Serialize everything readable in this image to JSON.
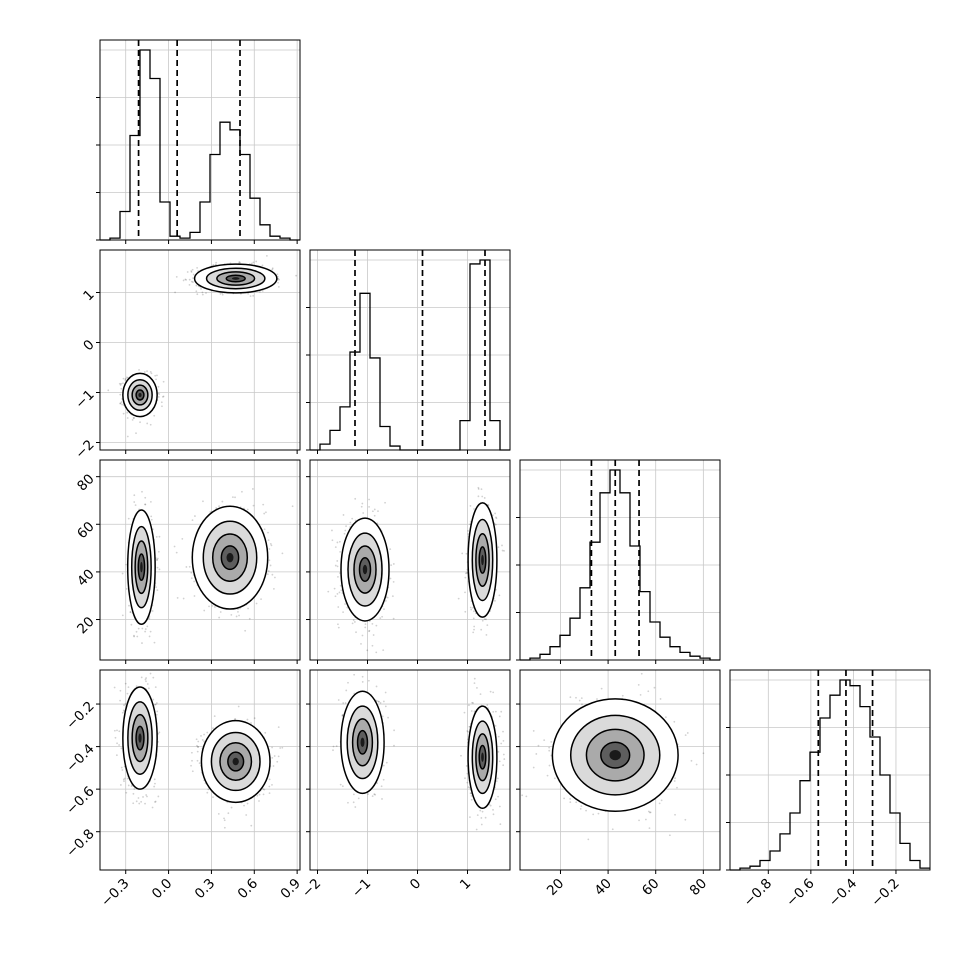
{
  "chart_data": {
    "type": "corner",
    "grid": true,
    "parameters": [
      {
        "ticks": [
          -0.3,
          0.0,
          0.3,
          0.6,
          0.9
        ],
        "tick_labels": [
          "−0.3",
          "0.0",
          "0.3",
          "0.6",
          "0.9"
        ],
        "range": [
          -0.48,
          0.92
        ]
      },
      {
        "ticks": [
          -2,
          -1,
          0,
          1
        ],
        "tick_labels": [
          "−2",
          "−1",
          "0",
          "1"
        ],
        "range": [
          -2.15,
          1.85
        ]
      },
      {
        "ticks": [
          20,
          40,
          60,
          80
        ],
        "tick_labels": [
          "20",
          "40",
          "60",
          "80"
        ],
        "range": [
          3,
          87
        ]
      },
      {
        "ticks": [
          -0.8,
          -0.6,
          -0.4,
          -0.2
        ],
        "tick_labels": [
          "−0.8",
          "−0.6",
          "−0.4",
          "−0.2"
        ],
        "range": [
          -0.98,
          -0.04
        ]
      }
    ],
    "histograms": [
      {
        "param": 0,
        "bin_edges": [
          -0.48,
          -0.41,
          -0.34,
          -0.27,
          -0.2,
          -0.13,
          -0.06,
          0.01,
          0.08,
          0.15,
          0.22,
          0.29,
          0.36,
          0.43,
          0.5,
          0.57,
          0.64,
          0.71,
          0.78,
          0.85,
          0.92
        ],
        "counts": [
          0,
          0.01,
          0.15,
          0.55,
          1.0,
          0.85,
          0.2,
          0.02,
          0.01,
          0.04,
          0.2,
          0.45,
          0.62,
          0.58,
          0.45,
          0.22,
          0.08,
          0.02,
          0.01,
          0
        ],
        "quantiles": [
          -0.21,
          0.06,
          0.5
        ]
      },
      {
        "param": 1,
        "bin_edges": [
          -2.15,
          -1.95,
          -1.75,
          -1.55,
          -1.35,
          -1.15,
          -0.95,
          -0.75,
          -0.55,
          -0.35,
          -0.15,
          0.05,
          0.25,
          0.45,
          0.65,
          0.85,
          1.05,
          1.25,
          1.45,
          1.65,
          1.85
        ],
        "counts": [
          0,
          0.03,
          0.1,
          0.22,
          0.5,
          0.8,
          0.47,
          0.12,
          0.02,
          0,
          0,
          0,
          0,
          0,
          0,
          0.15,
          0.95,
          0.97,
          0.15,
          0
        ],
        "quantiles": [
          -1.25,
          0.1,
          1.35
        ]
      },
      {
        "param": 2,
        "bin_edges": [
          3,
          7.2,
          11.4,
          15.6,
          19.8,
          24,
          28.2,
          32.4,
          36.6,
          40.8,
          45,
          49.2,
          53.4,
          57.6,
          61.8,
          66,
          70.2,
          74.4,
          78.6,
          82.8,
          87
        ],
        "counts": [
          0,
          0.01,
          0.03,
          0.07,
          0.13,
          0.22,
          0.38,
          0.62,
          0.88,
          1.0,
          0.88,
          0.6,
          0.36,
          0.2,
          0.12,
          0.07,
          0.04,
          0.02,
          0.01,
          0
        ],
        "quantiles": [
          33,
          43,
          53
        ]
      },
      {
        "param": 3,
        "bin_edges": [
          -0.98,
          -0.933,
          -0.886,
          -0.839,
          -0.792,
          -0.745,
          -0.698,
          -0.651,
          -0.604,
          -0.557,
          -0.51,
          -0.463,
          -0.416,
          -0.369,
          -0.322,
          -0.275,
          -0.228,
          -0.181,
          -0.134,
          -0.087,
          -0.04
        ],
        "counts": [
          0,
          0.01,
          0.02,
          0.05,
          0.1,
          0.19,
          0.3,
          0.47,
          0.62,
          0.8,
          0.92,
          1.0,
          0.97,
          0.86,
          0.7,
          0.5,
          0.3,
          0.14,
          0.05,
          0.01
        ],
        "quantiles": [
          -0.565,
          -0.435,
          -0.31
        ]
      }
    ],
    "joint_distributions": [
      {
        "x_param": 0,
        "y_param": 1,
        "clusters": [
          {
            "center": [
              -0.2,
              -1.05
            ],
            "spread": [
              0.05,
              0.18
            ]
          },
          {
            "center": [
              0.47,
              1.28
            ],
            "spread": [
              0.12,
              0.12
            ]
          }
        ]
      },
      {
        "x_param": 0,
        "y_param": 2,
        "clusters": [
          {
            "center": [
              -0.19,
              42
            ],
            "spread": [
              0.04,
              10
            ]
          },
          {
            "center": [
              0.43,
              46
            ],
            "spread": [
              0.11,
              9
            ]
          }
        ]
      },
      {
        "x_param": 1,
        "y_param": 2,
        "clusters": [
          {
            "center": [
              -1.05,
              41
            ],
            "spread": [
              0.2,
              9
            ]
          },
          {
            "center": [
              1.3,
              45
            ],
            "spread": [
              0.12,
              10
            ]
          }
        ]
      },
      {
        "x_param": 0,
        "y_param": 3,
        "clusters": [
          {
            "center": [
              -0.2,
              -0.36
            ],
            "spread": [
              0.05,
              0.1
            ]
          },
          {
            "center": [
              0.47,
              -0.47
            ],
            "spread": [
              0.1,
              0.08
            ]
          }
        ]
      },
      {
        "x_param": 1,
        "y_param": 3,
        "clusters": [
          {
            "center": [
              -1.1,
              -0.38
            ],
            "spread": [
              0.18,
              0.1
            ]
          },
          {
            "center": [
              1.3,
              -0.45
            ],
            "spread": [
              0.12,
              0.1
            ]
          }
        ]
      },
      {
        "x_param": 2,
        "y_param": 3,
        "clusters": [
          {
            "center": [
              43,
              -0.44
            ],
            "spread": [
              11,
              0.11
            ]
          }
        ]
      }
    ]
  }
}
